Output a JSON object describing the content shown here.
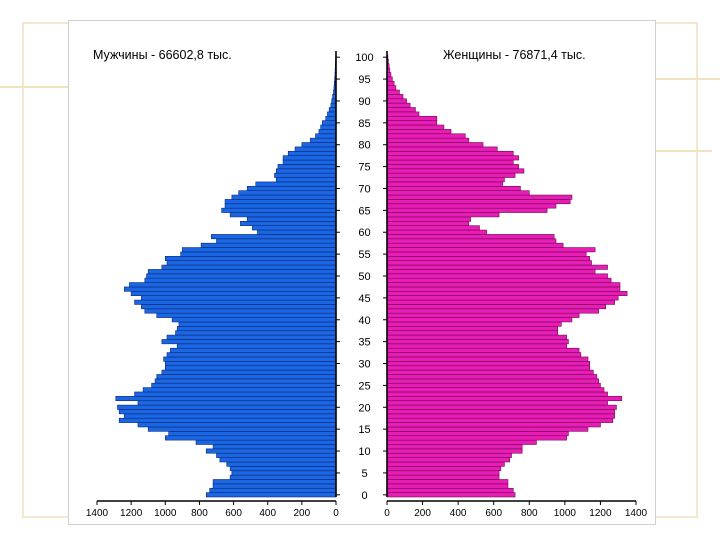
{
  "chart_data": {
    "type": "bar",
    "orientation": "horizontal-pyramid",
    "left_title": "Мужчины - 66602,8 тыс.",
    "right_title": "Женщины - 76871,4 тыс.",
    "age_ticks": [
      "0",
      "5",
      "10",
      "15",
      "20",
      "25",
      "30",
      "35",
      "40",
      "45",
      "50",
      "55",
      "60",
      "65",
      "70",
      "75",
      "80",
      "85",
      "90",
      "95",
      "100"
    ],
    "male_ticks": [
      "1400",
      "1200",
      "1000",
      "800",
      "600",
      "400",
      "200",
      "0"
    ],
    "female_ticks": [
      "0",
      "200",
      "400",
      "600",
      "800",
      "1000",
      "1200",
      "1400"
    ],
    "xlim": [
      0,
      1400
    ],
    "ages": [
      0,
      1,
      2,
      3,
      4,
      5,
      6,
      7,
      8,
      9,
      10,
      11,
      12,
      13,
      14,
      15,
      16,
      17,
      18,
      19,
      20,
      21,
      22,
      23,
      24,
      25,
      26,
      27,
      28,
      29,
      30,
      31,
      32,
      33,
      34,
      35,
      36,
      37,
      38,
      39,
      40,
      41,
      42,
      43,
      44,
      45,
      46,
      47,
      48,
      49,
      50,
      51,
      52,
      53,
      54,
      55,
      56,
      57,
      58,
      59,
      60,
      61,
      62,
      63,
      64,
      65,
      66,
      67,
      68,
      69,
      70,
      71,
      72,
      73,
      74,
      75,
      76,
      77,
      78,
      79,
      80,
      81,
      82,
      83,
      84,
      85,
      86,
      87,
      88,
      89,
      90,
      91,
      92,
      93,
      94,
      95,
      96,
      97,
      98,
      99,
      100
    ],
    "series": [
      {
        "name": "Мужчины",
        "color": "#1b66e3",
        "values": [
          760,
          740,
          720,
          720,
          620,
          610,
          620,
          640,
          680,
          700,
          760,
          720,
          820,
          1000,
          980,
          1100,
          1160,
          1270,
          1240,
          1270,
          1280,
          1160,
          1290,
          1180,
          1130,
          1080,
          1060,
          1050,
          1020,
          1000,
          1000,
          1010,
          990,
          970,
          930,
          1020,
          990,
          940,
          930,
          920,
          960,
          1050,
          1120,
          1140,
          1180,
          1140,
          1200,
          1240,
          1210,
          1120,
          1110,
          1100,
          1020,
          990,
          1000,
          910,
          900,
          790,
          700,
          730,
          460,
          490,
          560,
          520,
          620,
          670,
          650,
          650,
          610,
          570,
          520,
          470,
          350,
          360,
          350,
          340,
          310,
          310,
          280,
          240,
          200,
          150,
          120,
          100,
          90,
          80,
          60,
          50,
          40,
          30,
          25,
          20,
          15,
          12,
          10,
          8,
          6,
          5,
          4,
          3,
          2
        ]
      },
      {
        "name": "Женщины",
        "color": "#ea1cb6",
        "values": [
          720,
          710,
          680,
          680,
          630,
          630,
          640,
          660,
          690,
          700,
          760,
          760,
          840,
          1010,
          1020,
          1130,
          1200,
          1270,
          1280,
          1280,
          1290,
          1240,
          1320,
          1240,
          1220,
          1200,
          1190,
          1180,
          1160,
          1140,
          1140,
          1130,
          1090,
          1080,
          1010,
          1020,
          1010,
          960,
          960,
          980,
          1040,
          1080,
          1190,
          1230,
          1280,
          1300,
          1350,
          1310,
          1310,
          1260,
          1240,
          1170,
          1240,
          1150,
          1140,
          1120,
          1170,
          990,
          950,
          940,
          560,
          520,
          460,
          470,
          630,
          900,
          950,
          1030,
          1040,
          800,
          750,
          650,
          660,
          720,
          770,
          740,
          710,
          740,
          710,
          620,
          540,
          460,
          440,
          360,
          320,
          280,
          280,
          180,
          160,
          130,
          110,
          90,
          70,
          50,
          40,
          30,
          22,
          16,
          12,
          8,
          5
        ]
      }
    ]
  }
}
